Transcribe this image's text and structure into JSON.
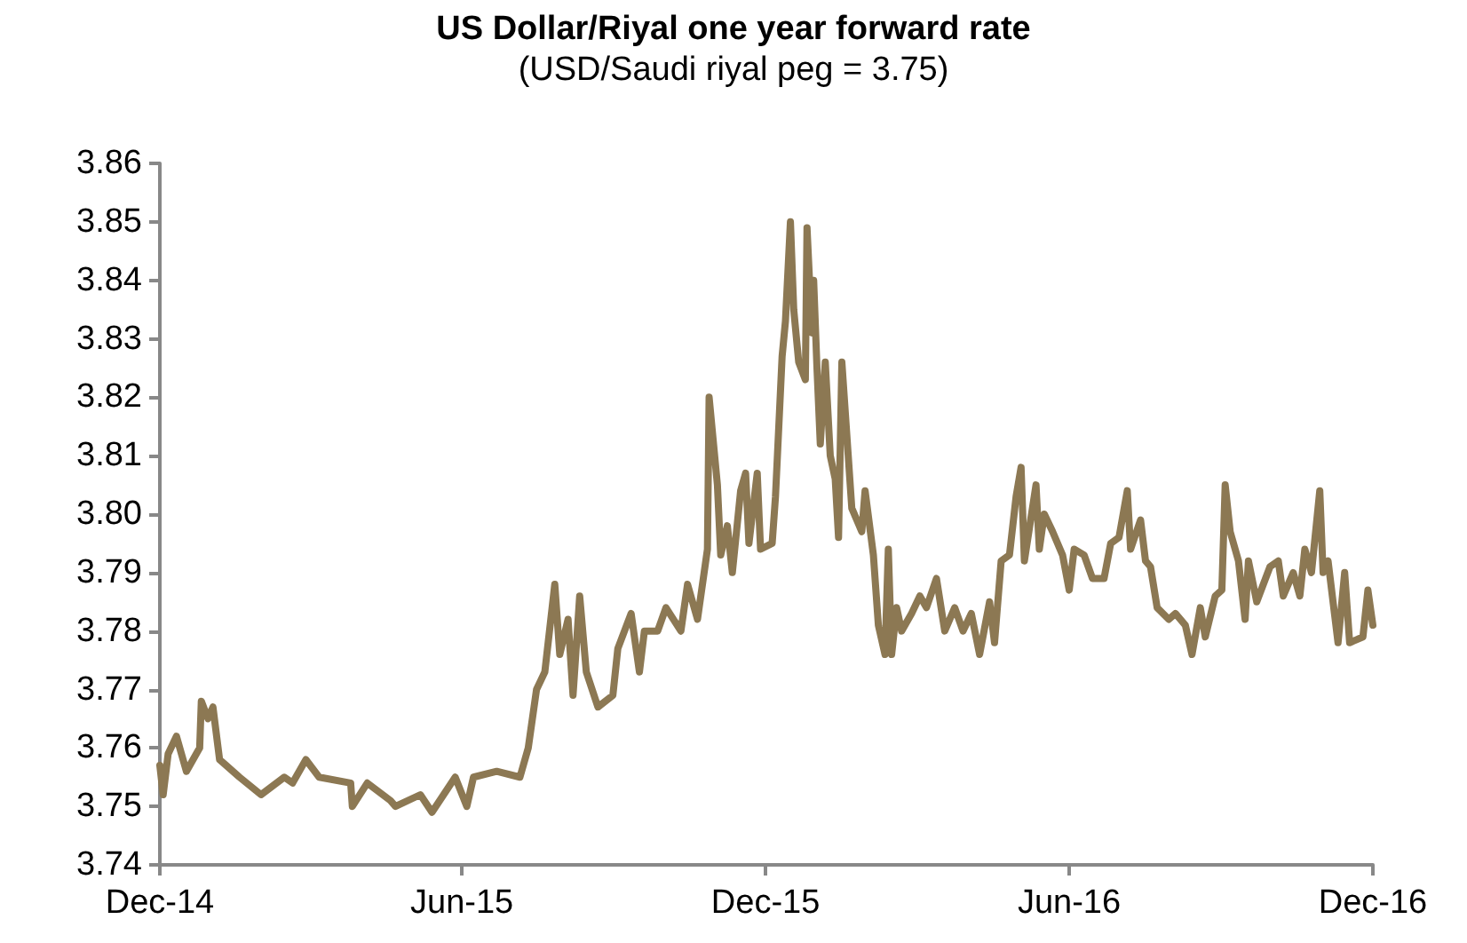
{
  "chart_data": {
    "type": "line",
    "title": "US Dollar/Riyal one year forward rate",
    "subtitle": "(USD/Saudi riyal peg = 3.75)",
    "x": [
      "2014-12-01",
      "2014-12-03",
      "2014-12-06",
      "2014-12-11",
      "2014-12-17",
      "2014-12-25",
      "2014-12-26",
      "2014-12-30",
      "2015-01-02",
      "2015-01-06",
      "2015-01-18",
      "2015-01-31",
      "2015-02-14",
      "2015-02-19",
      "2015-02-27",
      "2015-03-07",
      "2015-03-26",
      "2015-03-27",
      "2015-04-05",
      "2015-04-19",
      "2015-04-22",
      "2015-05-07",
      "2015-05-14",
      "2015-05-21",
      "2015-05-28",
      "2015-06-04",
      "2015-06-08",
      "2015-06-22",
      "2015-07-06",
      "2015-07-11",
      "2015-07-16",
      "2015-07-21",
      "2015-07-27",
      "2015-07-30",
      "2015-08-04",
      "2015-08-07",
      "2015-08-11",
      "2015-08-15",
      "2015-08-22",
      "2015-08-31",
      "2015-09-03",
      "2015-09-11",
      "2015-09-16",
      "2015-09-19",
      "2015-09-27",
      "2015-10-02",
      "2015-10-11",
      "2015-10-15",
      "2015-10-21",
      "2015-10-27",
      "2015-10-28",
      "2015-11-02",
      "2015-11-04",
      "2015-11-08",
      "2015-11-11",
      "2015-11-16",
      "2015-11-19",
      "2015-11-21",
      "2015-11-26",
      "2015-11-28",
      "2015-12-05",
      "2015-12-07",
      "2015-12-11",
      "2015-12-13",
      "2015-12-16",
      "2015-12-18",
      "2015-12-21",
      "2015-12-25",
      "2015-12-26",
      "2015-12-29",
      "2015-12-30",
      "2016-01-01",
      "2016-01-03",
      "2016-01-06",
      "2016-01-09",
      "2016-01-12",
      "2016-01-14",
      "2016-01-16",
      "2016-01-22",
      "2016-01-28",
      "2016-01-30",
      "2016-02-04",
      "2016-02-07",
      "2016-02-11",
      "2016-02-13",
      "2016-02-15",
      "2016-02-18",
      "2016-02-21",
      "2016-02-27",
      "2016-03-03",
      "2016-03-07",
      "2016-03-13",
      "2016-03-18",
      "2016-03-24",
      "2016-03-29",
      "2016-04-03",
      "2016-04-08",
      "2016-04-14",
      "2016-04-17",
      "2016-04-21",
      "2016-04-26",
      "2016-04-30",
      "2016-05-03",
      "2016-05-05",
      "2016-05-12",
      "2016-05-14",
      "2016-05-17",
      "2016-05-22",
      "2016-05-28",
      "2016-06-01",
      "2016-06-04",
      "2016-06-10",
      "2016-06-15",
      "2016-06-22",
      "2016-06-26",
      "2016-07-01",
      "2016-07-06",
      "2016-07-08",
      "2016-07-14",
      "2016-07-17",
      "2016-07-20",
      "2016-07-24",
      "2016-07-31",
      "2016-08-04",
      "2016-08-10",
      "2016-08-14",
      "2016-08-19",
      "2016-08-22",
      "2016-08-28",
      "2016-09-01",
      "2016-09-03",
      "2016-09-06",
      "2016-09-11",
      "2016-09-15",
      "2016-09-17",
      "2016-09-22",
      "2016-09-30",
      "2016-10-05",
      "2016-10-08",
      "2016-10-14",
      "2016-10-18",
      "2016-10-21",
      "2016-10-25",
      "2016-10-30",
      "2016-11-01",
      "2016-11-04",
      "2016-11-10",
      "2016-11-14",
      "2016-11-17",
      "2016-11-25",
      "2016-11-28",
      "2016-12-01"
    ],
    "series": [
      {
        "color": "#8c7853",
        "values": [
          3.757,
          3.752,
          3.759,
          3.762,
          3.756,
          3.76,
          3.768,
          3.765,
          3.767,
          3.758,
          3.755,
          3.752,
          3.755,
          3.754,
          3.758,
          3.755,
          3.754,
          3.75,
          3.754,
          3.751,
          3.75,
          3.752,
          3.749,
          3.752,
          3.755,
          3.75,
          3.755,
          3.756,
          3.755,
          3.76,
          3.77,
          3.773,
          3.788,
          3.776,
          3.782,
          3.769,
          3.786,
          3.773,
          3.767,
          3.769,
          3.777,
          3.783,
          3.773,
          3.78,
          3.78,
          3.784,
          3.78,
          3.788,
          3.782,
          3.794,
          3.82,
          3.805,
          3.793,
          3.798,
          3.79,
          3.804,
          3.807,
          3.795,
          3.807,
          3.794,
          3.795,
          3.803,
          3.827,
          3.833,
          3.85,
          3.835,
          3.826,
          3.823,
          3.849,
          3.831,
          3.84,
          3.825,
          3.812,
          3.826,
          3.81,
          3.806,
          3.796,
          3.826,
          3.801,
          3.797,
          3.804,
          3.793,
          3.781,
          3.776,
          3.794,
          3.776,
          3.784,
          3.78,
          3.783,
          3.786,
          3.784,
          3.789,
          3.78,
          3.784,
          3.78,
          3.783,
          3.776,
          3.785,
          3.778,
          3.792,
          3.793,
          3.803,
          3.808,
          3.792,
          3.805,
          3.794,
          3.8,
          3.797,
          3.793,
          3.787,
          3.794,
          3.793,
          3.789,
          3.789,
          3.795,
          3.796,
          3.804,
          3.794,
          3.799,
          3.792,
          3.791,
          3.784,
          3.782,
          3.783,
          3.781,
          3.776,
          3.784,
          3.779,
          3.786,
          3.787,
          3.805,
          3.797,
          3.792,
          3.782,
          3.792,
          3.785,
          3.791,
          3.792,
          3.786,
          3.79,
          3.786,
          3.794,
          3.79,
          3.804,
          3.79,
          3.792,
          3.778,
          3.79,
          3.778,
          3.779,
          3.787,
          3.781
        ]
      }
    ],
    "xlim": [
      "2014-12-01",
      "2016-12-01"
    ],
    "xticks": [
      {
        "value": "2014-12-01",
        "label": "Dec-14"
      },
      {
        "value": "2015-06-01",
        "label": "Jun-15"
      },
      {
        "value": "2015-12-01",
        "label": "Dec-15"
      },
      {
        "value": "2016-06-01",
        "label": "Jun-16"
      },
      {
        "value": "2016-12-01",
        "label": "Dec-16"
      }
    ],
    "ylim": [
      3.74,
      3.86
    ],
    "yticks": [
      3.74,
      3.75,
      3.76,
      3.77,
      3.78,
      3.79,
      {
        "value": 3.8,
        "label": "3.80"
      },
      3.81,
      3.82,
      3.83,
      3.84,
      3.85,
      3.86
    ],
    "grid": false
  }
}
